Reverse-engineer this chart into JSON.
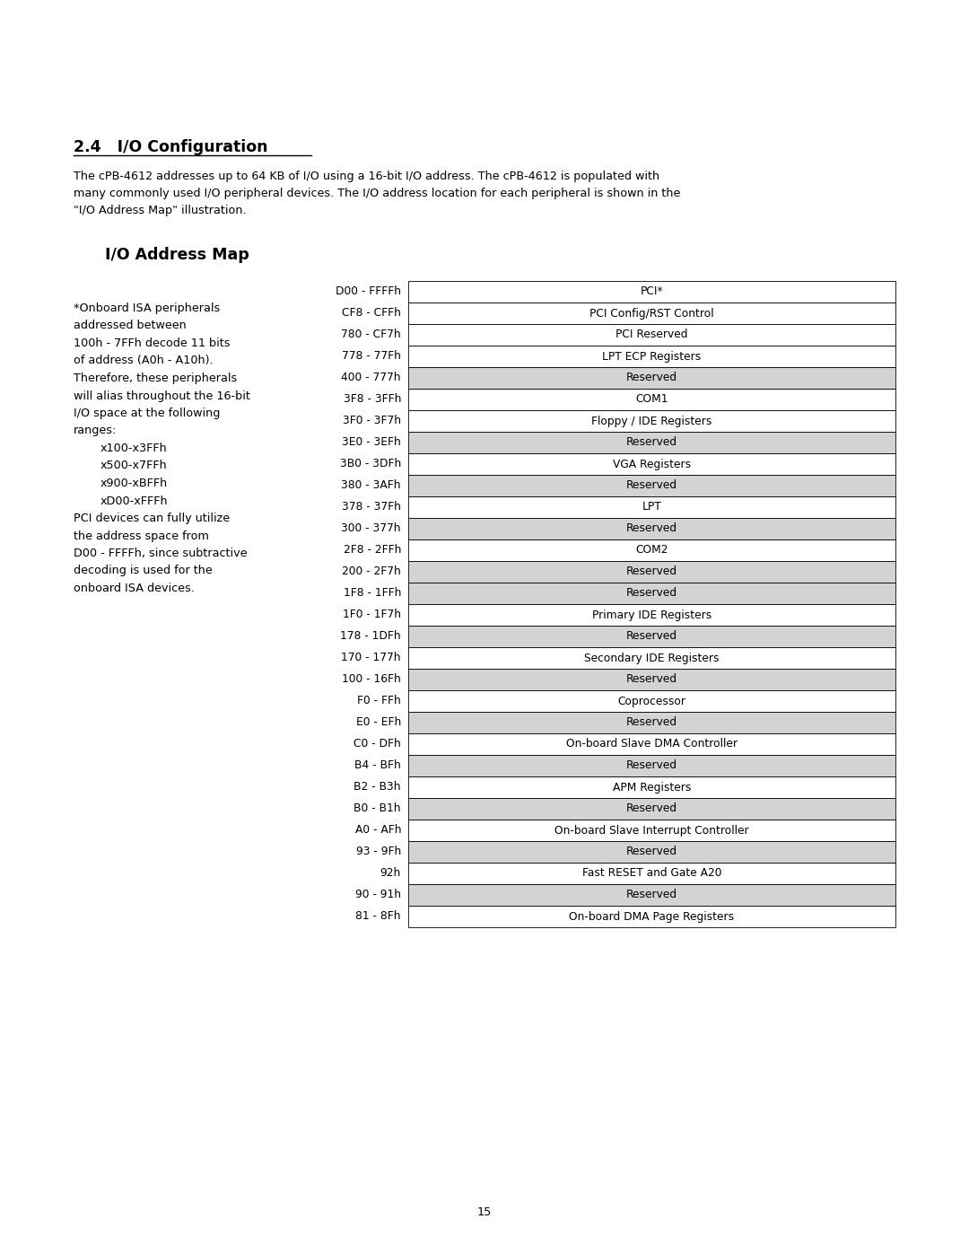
{
  "title": "2.4   I/O Configuration",
  "paragraph_lines": [
    "The cPB-4612 addresses up to 64 KB of I/O using a 16-bit I/O address. The cPB-4612 is populated with",
    "many commonly used I/O peripheral devices. The I/O address location for each peripheral is shown in the",
    "\"I/O Address Map\" illustration."
  ],
  "map_title": "I/O Address Map",
  "left_text": [
    {
      "text": "*Onboard ISA peripherals",
      "indent": false
    },
    {
      "text": "addressed between",
      "indent": false
    },
    {
      "text": "100h - 7FFh decode 11 bits",
      "indent": false
    },
    {
      "text": "of address (A0h - A10h).",
      "indent": false
    },
    {
      "text": "Therefore, these peripherals",
      "indent": false
    },
    {
      "text": "will alias throughout the 16-bit",
      "indent": false
    },
    {
      "text": "I/O space at the following",
      "indent": false
    },
    {
      "text": "ranges:",
      "indent": false
    },
    {
      "text": "x100-x3FFh",
      "indent": true
    },
    {
      "text": "x500-x7FFh",
      "indent": true
    },
    {
      "text": "x900-xBFFh",
      "indent": true
    },
    {
      "text": "xD00-xFFFh",
      "indent": true
    },
    {
      "text": "PCI devices can fully utilize",
      "indent": false
    },
    {
      "text": "the address space from",
      "indent": false
    },
    {
      "text": "D00 - FFFFh, since subtractive",
      "indent": false
    },
    {
      "text": "decoding is used for the",
      "indent": false
    },
    {
      "text": "onboard ISA devices.",
      "indent": false
    }
  ],
  "table_rows": [
    {
      "addr": "D00 - FFFFh",
      "desc": "PCI*",
      "reserved": false
    },
    {
      "addr": "CF8 - CFFh",
      "desc": "PCI Config/RST Control",
      "reserved": false
    },
    {
      "addr": "780 - CF7h",
      "desc": "PCI Reserved",
      "reserved": false
    },
    {
      "addr": "778 - 77Fh",
      "desc": "LPT ECP Registers",
      "reserved": false
    },
    {
      "addr": "400 - 777h",
      "desc": "Reserved",
      "reserved": true
    },
    {
      "addr": "3F8 - 3FFh",
      "desc": "COM1",
      "reserved": false
    },
    {
      "addr": "3F0 - 3F7h",
      "desc": "Floppy / IDE Registers",
      "reserved": false
    },
    {
      "addr": "3E0 - 3EFh",
      "desc": "Reserved",
      "reserved": true
    },
    {
      "addr": "3B0 - 3DFh",
      "desc": "VGA Registers",
      "reserved": false
    },
    {
      "addr": "380 - 3AFh",
      "desc": "Reserved",
      "reserved": true
    },
    {
      "addr": "378 - 37Fh",
      "desc": "LPT",
      "reserved": false
    },
    {
      "addr": "300 - 377h",
      "desc": "Reserved",
      "reserved": true
    },
    {
      "addr": "2F8 - 2FFh",
      "desc": "COM2",
      "reserved": false
    },
    {
      "addr": "200 - 2F7h",
      "desc": "Reserved",
      "reserved": true
    },
    {
      "addr": "1F8 - 1FFh",
      "desc": "Reserved",
      "reserved": true
    },
    {
      "addr": "1F0 - 1F7h",
      "desc": "Primary IDE Registers",
      "reserved": false
    },
    {
      "addr": "178 - 1DFh",
      "desc": "Reserved",
      "reserved": true
    },
    {
      "addr": "170 - 177h",
      "desc": "Secondary IDE Registers",
      "reserved": false
    },
    {
      "addr": "100 - 16Fh",
      "desc": "Reserved",
      "reserved": true
    },
    {
      "addr": "F0 - FFh",
      "desc": "Coprocessor",
      "reserved": false
    },
    {
      "addr": "E0 - EFh",
      "desc": "Reserved",
      "reserved": true
    },
    {
      "addr": "C0 - DFh",
      "desc": "On-board Slave DMA Controller",
      "reserved": false
    },
    {
      "addr": "B4 - BFh",
      "desc": "Reserved",
      "reserved": true
    },
    {
      "addr": "B2 - B3h",
      "desc": "APM Registers",
      "reserved": false
    },
    {
      "addr": "B0 - B1h",
      "desc": "Reserved",
      "reserved": true
    },
    {
      "addr": "A0 - AFh",
      "desc": "On-board Slave Interrupt Controller",
      "reserved": false
    },
    {
      "addr": "93 - 9Fh",
      "desc": "Reserved",
      "reserved": true
    },
    {
      "addr": "92h",
      "desc": "Fast RESET and Gate A20",
      "reserved": false
    },
    {
      "addr": "90 - 91h",
      "desc": "Reserved",
      "reserved": true
    },
    {
      "addr": "81 - 8Fh",
      "desc": "On-board DMA Page Registers",
      "reserved": false
    }
  ],
  "page_number": "15",
  "bg_color": "#ffffff",
  "reserved_color": "#d3d3d3",
  "white_color": "#ffffff",
  "border_color": "#000000"
}
